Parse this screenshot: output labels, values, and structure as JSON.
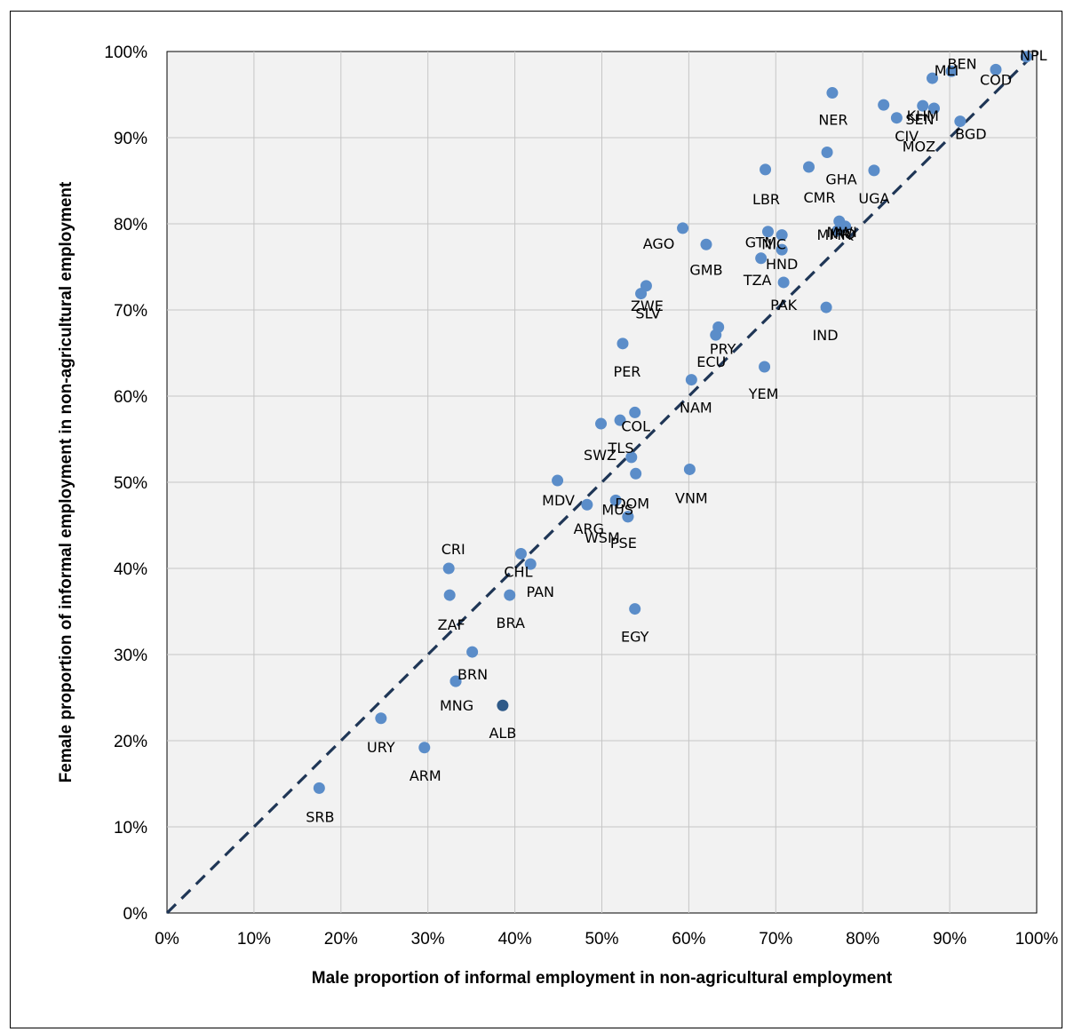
{
  "chart_data": {
    "type": "scatter",
    "title": "",
    "xlabel": "Male proportion of informal employment in non-agricultural employment",
    "ylabel": "Female proportion of informal employment in non-agricultural employment",
    "xlim": [
      0,
      100
    ],
    "ylim": [
      0,
      100
    ],
    "x_ticks": [
      "0%",
      "10%",
      "20%",
      "30%",
      "40%",
      "50%",
      "60%",
      "70%",
      "80%",
      "90%",
      "100%"
    ],
    "y_ticks": [
      "0%",
      "10%",
      "20%",
      "30%",
      "40%",
      "50%",
      "60%",
      "70%",
      "80%",
      "90%",
      "100%"
    ],
    "grid": true,
    "reference_line": "y = x (dashed)",
    "colors": {
      "points": "#5b8dc9",
      "highlight": "#2f5a88",
      "line": "#1f3656",
      "plot_bg": "#f2f2f2",
      "grid": "#c6c6c6"
    },
    "points": [
      {
        "label": "NPL",
        "x": 98.8,
        "y": 99.4
      },
      {
        "label": "COD",
        "x": 95.3,
        "y": 97.9
      },
      {
        "label": "BEN",
        "x": 90.2,
        "y": 97.7
      },
      {
        "label": "MLI",
        "x": 88.0,
        "y": 96.9
      },
      {
        "label": "KHM",
        "x": 86.9,
        "y": 93.7
      },
      {
        "label": "SEN",
        "x": 88.2,
        "y": 93.4
      },
      {
        "label": "BGD",
        "x": 91.2,
        "y": 91.9
      },
      {
        "label": "NER",
        "x": 76.5,
        "y": 95.2
      },
      {
        "label": "CIV",
        "x": 82.4,
        "y": 93.8
      },
      {
        "label": "MOZ",
        "x": 83.9,
        "y": 92.3
      },
      {
        "label": "GHA",
        "x": 75.9,
        "y": 88.3
      },
      {
        "label": "CMR",
        "x": 73.8,
        "y": 86.6
      },
      {
        "label": "LBR",
        "x": 68.8,
        "y": 86.3
      },
      {
        "label": "UGA",
        "x": 81.3,
        "y": 86.2
      },
      {
        "label": "IRQ",
        "x": 77.3,
        "y": 80.3
      },
      {
        "label": "MWI",
        "x": 78.0,
        "y": 79.7
      },
      {
        "label": "MMR",
        "x": 77.1,
        "y": 79.2
      },
      {
        "label": "AGO",
        "x": 59.3,
        "y": 79.5
      },
      {
        "label": "GMB",
        "x": 62.0,
        "y": 77.6
      },
      {
        "label": "GTM",
        "x": 69.1,
        "y": 79.1
      },
      {
        "label": "NIC",
        "x": 70.7,
        "y": 78.7
      },
      {
        "label": "HND",
        "x": 70.7,
        "y": 77.0
      },
      {
        "label": "TZA",
        "x": 68.3,
        "y": 76.0
      },
      {
        "label": "PAK",
        "x": 70.9,
        "y": 73.2
      },
      {
        "label": "IND",
        "x": 75.8,
        "y": 70.3
      },
      {
        "label": "ZWE",
        "x": 55.1,
        "y": 72.8
      },
      {
        "label": "SLV",
        "x": 54.5,
        "y": 71.9
      },
      {
        "label": "PER",
        "x": 52.4,
        "y": 66.1
      },
      {
        "label": "PRY",
        "x": 63.4,
        "y": 68.0
      },
      {
        "label": "ECU",
        "x": 63.1,
        "y": 67.1
      },
      {
        "label": "YEM",
        "x": 68.7,
        "y": 63.4
      },
      {
        "label": "NAM",
        "x": 60.3,
        "y": 61.9
      },
      {
        "label": "COL",
        "x": 53.8,
        "y": 58.1
      },
      {
        "label": "TLS",
        "x": 52.1,
        "y": 57.2
      },
      {
        "label": "SWZ",
        "x": 49.9,
        "y": 56.8
      },
      {
        "label": "",
        "x": 53.4,
        "y": 52.9
      },
      {
        "label": "DOM",
        "x": 53.9,
        "y": 51.0
      },
      {
        "label": "VNM",
        "x": 60.1,
        "y": 51.5
      },
      {
        "label": "MDV",
        "x": 44.9,
        "y": 50.2
      },
      {
        "label": "MUS",
        "x": 51.6,
        "y": 47.9
      },
      {
        "label": "ARG",
        "x": 48.3,
        "y": 47.4
      },
      {
        "label": "WSM",
        "x": 53.0,
        "y": 46.0
      },
      {
        "label": "PSE",
        "x": 53.0,
        "y": 46.0
      },
      {
        "label": "CRI",
        "x": 32.4,
        "y": 40.0
      },
      {
        "label": "CHL",
        "x": 40.7,
        "y": 41.7
      },
      {
        "label": "PAN",
        "x": 41.8,
        "y": 40.5
      },
      {
        "label": "BRA",
        "x": 39.4,
        "y": 36.9
      },
      {
        "label": "ZAF",
        "x": 32.5,
        "y": 36.9
      },
      {
        "label": "EGY",
        "x": 53.8,
        "y": 35.3
      },
      {
        "label": "",
        "x": 35.1,
        "y": 30.3
      },
      {
        "label": "BRN",
        "x": 33.2,
        "y": 26.9
      },
      {
        "label": "MNG",
        "x": 33.2,
        "y": 26.9
      },
      {
        "label": "ALB",
        "x": 38.6,
        "y": 24.1,
        "highlight": true
      },
      {
        "label": "URY",
        "x": 24.6,
        "y": 22.6
      },
      {
        "label": "ARM",
        "x": 29.6,
        "y": 19.2
      },
      {
        "label": "SRB",
        "x": 17.5,
        "y": 14.5
      }
    ]
  }
}
